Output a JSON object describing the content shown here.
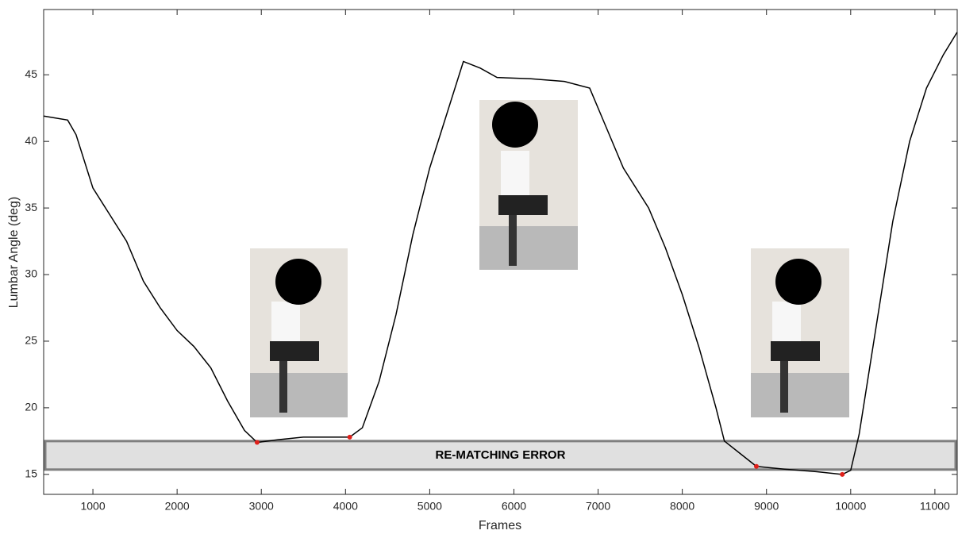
{
  "chart_data": {
    "type": "line",
    "xlabel": "Frames",
    "ylabel": "Lumbar Angle (deg)",
    "x": [
      415,
      700,
      800,
      1000,
      1200,
      1400,
      1600,
      1800,
      2000,
      2200,
      2400,
      2600,
      2800,
      2950,
      3200,
      3500,
      3800,
      4050,
      4200,
      4400,
      4600,
      4800,
      5000,
      5200,
      5400,
      5600,
      5800,
      6200,
      6600,
      6900,
      7100,
      7300,
      7600,
      7800,
      8000,
      8200,
      8400,
      8500,
      8700,
      8880,
      9200,
      9600,
      9900,
      10000,
      10100,
      10300,
      10500,
      10700,
      10900,
      11100,
      11265
    ],
    "values": [
      41.9,
      41.6,
      40.5,
      36.5,
      34.5,
      32.5,
      29.5,
      27.5,
      25.8,
      24.6,
      23,
      20.5,
      18.3,
      17.4,
      17.6,
      17.8,
      17.8,
      17.8,
      18.5,
      22,
      27,
      33,
      38,
      42,
      46,
      45.5,
      44.8,
      44.7,
      44.5,
      44,
      41,
      38,
      35,
      32,
      28.5,
      24.5,
      20,
      17.5,
      16.5,
      15.6,
      15.4,
      15.2,
      15,
      15.3,
      18,
      26,
      34,
      40,
      44,
      46.5,
      48.2
    ],
    "color": "#000000",
    "markers": {
      "x": [
        2950,
        4050,
        8880,
        9900
      ],
      "values": [
        17.4,
        17.8,
        15.6,
        15
      ],
      "color": "#e0201b"
    },
    "band": {
      "label": "RE-MATCHING ERROR",
      "ymin": 15.36,
      "ymax": 17.5
    },
    "xlim": [
      415,
      11265
    ],
    "ylim": [
      13.5,
      49.9
    ],
    "xticks": [
      1000,
      2000,
      3000,
      4000,
      5000,
      6000,
      7000,
      8000,
      9000,
      10000,
      11000
    ],
    "yticks": [
      15,
      20,
      25,
      30,
      35,
      40,
      45
    ]
  }
}
